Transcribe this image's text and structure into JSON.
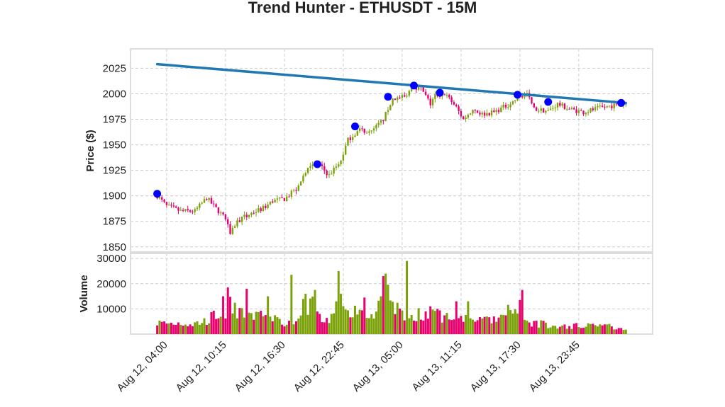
{
  "chart_data": {
    "type": "candlestick",
    "title": "Trend Hunter - ETHUSDT - 15M",
    "price_panel": {
      "ylabel": "Price ($)",
      "ylim": [
        1845,
        2044
      ],
      "yticks": [
        1850,
        1875,
        1900,
        1925,
        1950,
        1975,
        2000,
        2025
      ],
      "grid": true
    },
    "volume_panel": {
      "ylabel": "Volume",
      "ylim": [
        0,
        32000
      ],
      "yticks": [
        10000,
        20000,
        30000
      ],
      "ytick_labels": [
        "10000",
        "20000",
        "30000"
      ],
      "grid": true
    },
    "x_tick_labels": [
      "Aug 12, 04:00",
      "Aug 12, 10:15",
      "Aug 12, 16:30",
      "Aug 12, 22:45",
      "Aug 13, 05:00",
      "Aug 13, 11:15",
      "Aug 13, 17:30",
      "Aug 13, 23:45"
    ],
    "x_tick_bars": [
      4,
      29,
      54,
      79,
      104,
      129,
      154,
      179
    ],
    "bar_count": 200,
    "price_anchors": [
      [
        0,
        1900
      ],
      [
        4,
        1890
      ],
      [
        10,
        1885
      ],
      [
        16,
        1885
      ],
      [
        21,
        1898
      ],
      [
        24,
        1890
      ],
      [
        28,
        1880
      ],
      [
        31,
        1865
      ],
      [
        34,
        1875
      ],
      [
        40,
        1883
      ],
      [
        45,
        1888
      ],
      [
        49,
        1895
      ],
      [
        54,
        1897
      ],
      [
        60,
        1908
      ],
      [
        64,
        1930
      ],
      [
        68,
        1932
      ],
      [
        73,
        1920
      ],
      [
        78,
        1935
      ],
      [
        81,
        1955
      ],
      [
        86,
        1965
      ],
      [
        91,
        1962
      ],
      [
        96,
        1975
      ],
      [
        100,
        1995
      ],
      [
        106,
        1997
      ],
      [
        108,
        2008
      ],
      [
        112,
        2005
      ],
      [
        116,
        1990
      ],
      [
        118,
        1998
      ],
      [
        122,
        2000
      ],
      [
        126,
        1990
      ],
      [
        130,
        1975
      ],
      [
        134,
        1985
      ],
      [
        138,
        1980
      ],
      [
        143,
        1982
      ],
      [
        148,
        1988
      ],
      [
        151,
        1992
      ],
      [
        154,
        1998
      ],
      [
        157,
        2000
      ],
      [
        160,
        1985
      ],
      [
        166,
        1983
      ],
      [
        170,
        1990
      ],
      [
        175,
        1985
      ],
      [
        181,
        1982
      ],
      [
        186,
        1985
      ],
      [
        192,
        1988
      ],
      [
        199,
        1990
      ]
    ],
    "volume_anchors": [
      [
        0,
        4500
      ],
      [
        5,
        4200
      ],
      [
        10,
        4500
      ],
      [
        15,
        4000
      ],
      [
        20,
        5000
      ],
      [
        26,
        8000
      ],
      [
        30,
        11000
      ],
      [
        34,
        10000
      ],
      [
        38,
        6000
      ],
      [
        42,
        8000
      ],
      [
        47,
        7000
      ],
      [
        54,
        5000
      ],
      [
        58,
        6000
      ],
      [
        63,
        11000
      ],
      [
        66,
        12000
      ],
      [
        70,
        5000
      ],
      [
        74,
        6000
      ],
      [
        78,
        14000
      ],
      [
        82,
        9000
      ],
      [
        86,
        9000
      ],
      [
        90,
        8000
      ],
      [
        94,
        10000
      ],
      [
        97,
        15000
      ],
      [
        100,
        13000
      ],
      [
        104,
        8000
      ],
      [
        107,
        9000
      ],
      [
        110,
        8000
      ],
      [
        114,
        7000
      ],
      [
        118,
        8000
      ],
      [
        122,
        7000
      ],
      [
        126,
        5000
      ],
      [
        130,
        7000
      ],
      [
        135,
        6000
      ],
      [
        140,
        5000
      ],
      [
        145,
        6000
      ],
      [
        150,
        9000
      ],
      [
        154,
        7000
      ],
      [
        158,
        5000
      ],
      [
        163,
        4000
      ],
      [
        168,
        3000
      ],
      [
        174,
        3000
      ],
      [
        180,
        3500
      ],
      [
        186,
        4000
      ],
      [
        192,
        3000
      ],
      [
        199,
        2500
      ]
    ],
    "volume_spikes": [
      [
        28,
        15000
      ],
      [
        30,
        18500
      ],
      [
        38,
        18000
      ],
      [
        47,
        15000
      ],
      [
        57,
        23500
      ],
      [
        63,
        16000
      ],
      [
        67,
        17500
      ],
      [
        77,
        25000
      ],
      [
        78,
        16000
      ],
      [
        88,
        14500
      ],
      [
        95,
        15000
      ],
      [
        96,
        23000
      ],
      [
        97,
        24000
      ],
      [
        106,
        29000
      ],
      [
        116,
        11000
      ],
      [
        127,
        13000
      ],
      [
        132,
        13000
      ],
      [
        154,
        13500
      ],
      [
        155,
        17500
      ]
    ],
    "trendline": {
      "x": [
        0,
        199
      ],
      "y": [
        2029,
        1991
      ],
      "color": "#1f77b4"
    },
    "markers": [
      {
        "bar": 0,
        "price": 1902
      },
      {
        "bar": 68,
        "price": 1931
      },
      {
        "bar": 84,
        "price": 1968
      },
      {
        "bar": 98,
        "price": 1997
      },
      {
        "bar": 109,
        "price": 2008
      },
      {
        "bar": 120,
        "price": 2001
      },
      {
        "bar": 153,
        "price": 1999
      },
      {
        "bar": 166,
        "price": 1992
      },
      {
        "bar": 197,
        "price": 1991
      }
    ],
    "colors": {
      "up": "#7ca20a",
      "down": "#e8006e",
      "marker": "#0000ff",
      "trend": "#1f77b4"
    }
  }
}
